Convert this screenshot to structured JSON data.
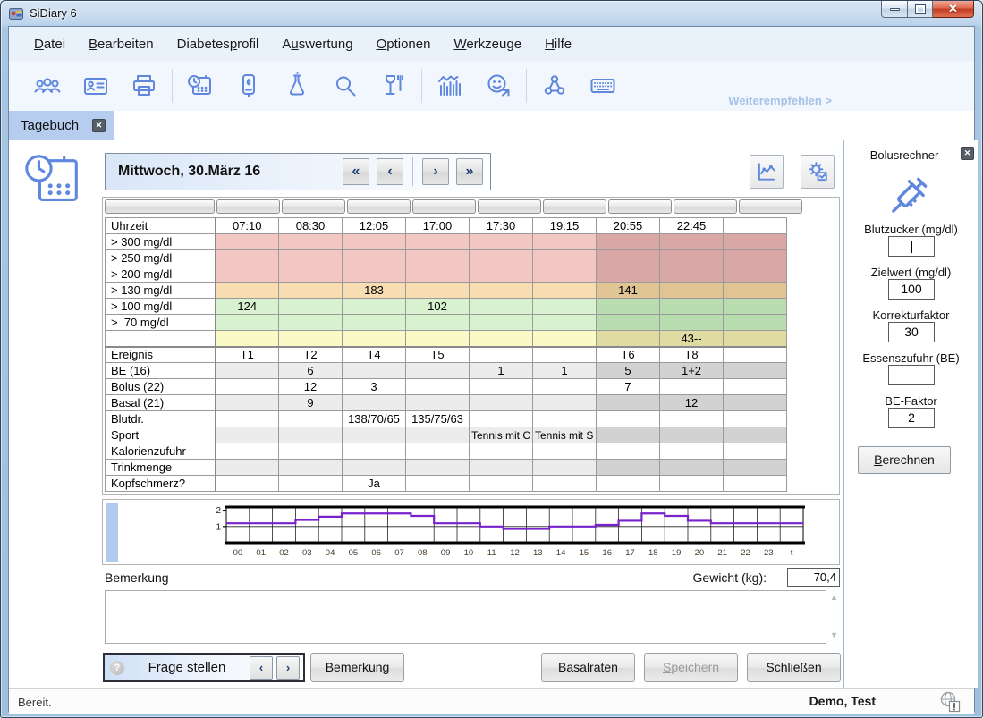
{
  "window": {
    "title": "SiDiary 6",
    "status_left": "Bereit.",
    "status_user": "Demo, Test"
  },
  "menu": {
    "items": [
      {
        "label": "Datei",
        "accel": 0
      },
      {
        "label": "Bearbeiten",
        "accel": 0
      },
      {
        "label": "Diabetesprofil",
        "accel": 8
      },
      {
        "label": "Auswertung",
        "accel": 1
      },
      {
        "label": "Optionen",
        "accel": 0
      },
      {
        "label": "Werkzeuge",
        "accel": 0
      },
      {
        "label": "Hilfe",
        "accel": 0
      }
    ]
  },
  "toolbar": {
    "icons": [
      "users",
      "id-card",
      "printer",
      "calendar-clock",
      "glucose-meter",
      "lab-flask",
      "search",
      "nutrition",
      "statistics",
      "wellbeing-share",
      "share",
      "keyboard"
    ],
    "recommend_link": "Weiterempfehlen >"
  },
  "tab": {
    "label": "Tagebuch"
  },
  "datebar": {
    "date_label": "Mittwoch, 30.März 16",
    "nav": {
      "first": "«",
      "prev": "‹",
      "next": "›",
      "last": "»"
    }
  },
  "diary_table": {
    "columns": [
      "Uhrzeit",
      "07:10",
      "08:30",
      "12:05",
      "17:00",
      "17:30",
      "19:15",
      "20:55",
      "22:45",
      ""
    ],
    "dark_columns": [
      6,
      7,
      8
    ],
    "rows": [
      {
        "label": "> 300 mg/dl",
        "type": "pink",
        "values": [
          "",
          "",
          "",
          "",
          "",
          "",
          "",
          "",
          ""
        ]
      },
      {
        "label": "> 250 mg/dl",
        "type": "pink",
        "values": [
          "",
          "",
          "",
          "",
          "",
          "",
          "",
          "",
          ""
        ]
      },
      {
        "label": "> 200 mg/dl",
        "type": "pink",
        "values": [
          "",
          "",
          "",
          "",
          "",
          "",
          "",
          "",
          ""
        ]
      },
      {
        "label": "> 130 mg/dl",
        "type": "orange",
        "values": [
          "",
          "",
          "183",
          "",
          "",
          "",
          "141",
          "",
          ""
        ]
      },
      {
        "label": "> 100 mg/dl",
        "type": "green",
        "values": [
          "124",
          "",
          "",
          "102",
          "",
          "",
          "",
          "",
          ""
        ]
      },
      {
        "label": ">  70 mg/dl",
        "type": "green",
        "values": [
          "",
          "",
          "",
          "",
          "",
          "",
          "",
          "",
          ""
        ]
      },
      {
        "label": "",
        "type": "yellow",
        "values": [
          "",
          "",
          "",
          "",
          "",
          "",
          "",
          "43--",
          ""
        ]
      },
      {
        "label": "Ereignis",
        "type": "white",
        "sep": true,
        "values": [
          "T1",
          "T2",
          "T4",
          "T5",
          "",
          "",
          "T6",
          "T8",
          ""
        ]
      },
      {
        "label": "BE (16)",
        "type": "gray",
        "values": [
          "",
          "6",
          "",
          "",
          "1",
          "1",
          "5",
          "1+2",
          ""
        ]
      },
      {
        "label": "Bolus (22)",
        "type": "white",
        "values": [
          "",
          "12",
          "3",
          "",
          "",
          "",
          "7",
          "",
          ""
        ]
      },
      {
        "label": "Basal (21)",
        "type": "gray",
        "values": [
          "",
          "9",
          "",
          "",
          "",
          "",
          "",
          "12",
          ""
        ]
      },
      {
        "label": "Blutdr.",
        "type": "white",
        "values": [
          "",
          "",
          "138/70/65",
          "135/75/63",
          "",
          "",
          "",
          "",
          ""
        ]
      },
      {
        "label": "Sport",
        "type": "gray",
        "overflow": true,
        "values": [
          "",
          "",
          "",
          "",
          "Tennis mit C",
          "Tennis mit S",
          "",
          "",
          ""
        ]
      },
      {
        "label": "Kalorienzufuhr",
        "type": "white",
        "values": [
          "",
          "",
          "",
          "",
          "",
          "",
          "",
          "",
          ""
        ]
      },
      {
        "label": "Trinkmenge",
        "type": "gray",
        "values": [
          "",
          "",
          "",
          "",
          "",
          "",
          "",
          "",
          ""
        ]
      },
      {
        "label": "Kopfschmerz?",
        "type": "white",
        "values": [
          "",
          "",
          "Ja",
          "",
          "",
          "",
          "",
          "",
          ""
        ]
      }
    ]
  },
  "chart_data": {
    "type": "line",
    "title": "",
    "x_labels": [
      "00",
      "01",
      "02",
      "03",
      "04",
      "05",
      "06",
      "07",
      "08",
      "09",
      "10",
      "11",
      "12",
      "13",
      "14",
      "15",
      "16",
      "17",
      "18",
      "19",
      "20",
      "21",
      "22",
      "23",
      "t"
    ],
    "values": [
      1.2,
      1.2,
      1.2,
      1.4,
      1.6,
      1.8,
      1.8,
      1.8,
      1.65,
      1.2,
      1.2,
      1.0,
      0.85,
      0.85,
      1.0,
      1.0,
      1.1,
      1.35,
      1.8,
      1.65,
      1.35,
      1.2,
      1.2,
      1.2
    ],
    "yticks": [
      1,
      2
    ],
    "ylim": [
      0,
      2.2
    ],
    "grid": true,
    "line_color": "#7722cc"
  },
  "remark": {
    "label": "Bemerkung",
    "weight_label": "Gewicht (kg):",
    "weight_value": "70,4",
    "text": ""
  },
  "footer": {
    "ask_label": "Frage stellen",
    "ask_icon": "?",
    "nav_prev": "‹",
    "nav_next": "›",
    "note_btn": "Bemerkung",
    "basal_btn": "Basalraten",
    "save_btn": {
      "label": "Speichern",
      "accel": 0
    },
    "close_btn": "Schließen"
  },
  "bolus_panel": {
    "title": "Bolusrechner",
    "fields": [
      {
        "label": "Blutzucker (mg/dl)",
        "value": ""
      },
      {
        "label": "Zielwert (mg/dl)",
        "value": "100"
      },
      {
        "label": "Korrekturfaktor",
        "value": "30"
      },
      {
        "label": "Essenszufuhr (BE)",
        "value": ""
      },
      {
        "label": "BE-Faktor",
        "value": "2"
      }
    ],
    "button": {
      "label": "Berechnen",
      "accel": 0
    }
  },
  "colors": {
    "accent_blue": "#5f87de",
    "tab_bg": "#b6cdf0",
    "line_purple": "#7722cc",
    "cell_pink": "#f2c6c3",
    "cell_pink_dark": "#d9a7a5",
    "cell_orange": "#f8ddb2",
    "cell_orange_dark": "#e0c494",
    "cell_green": "#d8f2d0",
    "cell_green_dark": "#b9dcb1",
    "cell_yellow": "#fbfac7",
    "cell_yellow_dark": "#dfdba2",
    "cell_gray": "#ececec",
    "cell_gray_dark": "#d2d2d2"
  }
}
